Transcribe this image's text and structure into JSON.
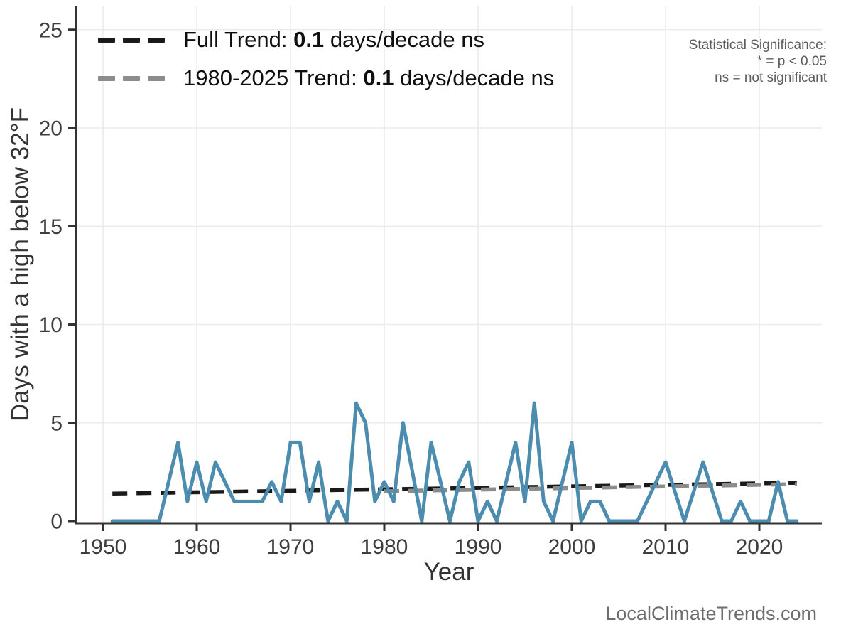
{
  "significance_note": {
    "line1": "Statistical Significance:",
    "line2": "* = p < 0.05",
    "line3": "ns = not significant"
  },
  "watermark": "LocalClimateTrends.com",
  "chart_data": {
    "type": "line",
    "title": "",
    "xlabel": "Year",
    "ylabel": "Days with a high below 32°F",
    "x_ticks": [
      1950,
      1960,
      1970,
      1980,
      1990,
      2000,
      2010,
      2020
    ],
    "y_ticks": [
      0,
      5,
      10,
      15,
      20,
      25
    ],
    "xlim": [
      1947,
      2027
    ],
    "ylim": [
      0,
      25.5
    ],
    "grid": true,
    "series_name": "Days with a high below 32°F",
    "series_color": "#4b8caf",
    "x": [
      1951,
      1952,
      1953,
      1954,
      1955,
      1956,
      1957,
      1958,
      1959,
      1960,
      1961,
      1962,
      1963,
      1964,
      1965,
      1966,
      1967,
      1968,
      1969,
      1970,
      1971,
      1972,
      1973,
      1974,
      1975,
      1976,
      1977,
      1978,
      1979,
      1980,
      1981,
      1982,
      1983,
      1984,
      1985,
      1986,
      1987,
      1988,
      1989,
      1990,
      1991,
      1992,
      1993,
      1994,
      1995,
      1996,
      1997,
      1998,
      1999,
      2000,
      2001,
      2002,
      2003,
      2004,
      2005,
      2006,
      2007,
      2008,
      2009,
      2010,
      2011,
      2012,
      2013,
      2014,
      2015,
      2016,
      2017,
      2018,
      2019,
      2020,
      2021,
      2022,
      2023,
      2024
    ],
    "values": [
      0,
      0,
      0,
      0,
      0,
      0,
      2,
      4,
      1,
      3,
      1,
      3,
      2,
      1,
      1,
      1,
      1,
      2,
      1,
      4,
      4,
      1,
      3,
      0,
      1,
      0,
      6,
      5,
      1,
      2,
      1,
      5,
      null,
      0,
      4,
      2,
      0,
      2,
      3,
      0,
      1,
      0,
      2,
      4,
      1,
      6,
      1,
      0,
      2,
      4,
      0,
      1,
      1,
      0,
      0,
      0,
      0,
      1,
      2,
      3,
      null,
      0,
      null,
      3,
      null,
      0,
      0,
      1,
      0,
      0,
      0,
      2,
      0,
      0
    ],
    "trends": [
      {
        "name": "full_trend",
        "label": "Full Trend:",
        "rate": "0.1",
        "suffix": "days/decade ns",
        "color": "#1a1a1a",
        "x": [
          1951,
          2024
        ],
        "values": [
          1.4,
          1.95
        ]
      },
      {
        "name": "trend_1980_2025",
        "label": "1980-2025 Trend:",
        "rate": "0.1",
        "suffix": "days/decade ns",
        "color": "#8c8c8c",
        "x": [
          1980,
          2024
        ],
        "values": [
          1.52,
          1.88
        ]
      }
    ]
  }
}
